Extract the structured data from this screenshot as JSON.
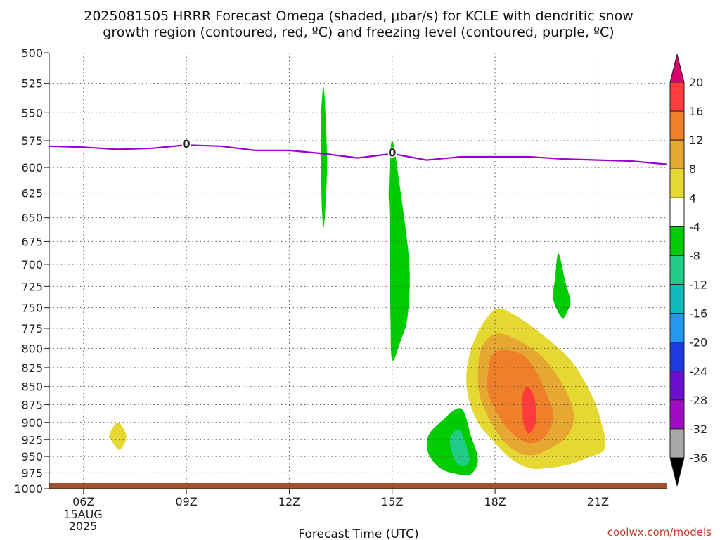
{
  "chart_data": {
    "type": "contour",
    "title_line1": "2025081505 HRRR Forecast Omega (shaded, μbar/s) for KCLE with dendritic snow",
    "title_line2": "growth region (contoured, red, ºC) and freezing level (contoured, purple, ºC)",
    "xlabel": "Forecast Time (UTC)",
    "x_ticks": [
      "06Z",
      "09Z",
      "12Z",
      "15Z",
      "18Z",
      "21Z"
    ],
    "x_tick_hours": [
      6,
      9,
      12,
      15,
      18,
      21
    ],
    "x_date_label": "15AUG",
    "x_year_label": "2025",
    "xlim_hours": [
      5,
      23
    ],
    "y_ticks": [
      "500",
      "525",
      "550",
      "575",
      "600",
      "625",
      "650",
      "675",
      "700",
      "725",
      "750",
      "775",
      "800",
      "825",
      "850",
      "875",
      "900",
      "925",
      "950",
      "975",
      "1000"
    ],
    "ylim_hpa": [
      500,
      1000
    ],
    "y_scale": "log-pressure",
    "credit": "coolwx.com/models",
    "colorbar": {
      "labels": [
        "20",
        "16",
        "12",
        "8",
        "4",
        "-4",
        "-8",
        "-12",
        "-16",
        "-20",
        "-24",
        "-28",
        "-32",
        "-36"
      ],
      "colors": [
        "#d6006e",
        "#ff3b3b",
        "#f07f2a",
        "#e6a833",
        "#e6d832",
        "#ffffff",
        "#00cc00",
        "#22cc88",
        "#11bbbb",
        "#2299ee",
        "#1e3adf",
        "#6a0fcf",
        "#a00cc4",
        "#a8a8a8",
        "#000000"
      ]
    },
    "freezing_level": {
      "label": "0",
      "color": "#9b00d0",
      "hours": [
        5,
        6,
        7,
        8,
        9,
        10,
        11,
        12,
        13,
        14,
        15,
        16,
        17,
        18,
        19,
        20,
        21,
        22,
        23
      ],
      "pressure_hpa": [
        580,
        581,
        583,
        582,
        579,
        580,
        584,
        584,
        587,
        591,
        587,
        593,
        590,
        590,
        590,
        592,
        593,
        594,
        597
      ]
    },
    "terrain_color": "#a0522d",
    "omega_regions": [
      {
        "level": "-8..-4",
        "color": "#00cc00",
        "hours": [
          13.0,
          13.07,
          13.1,
          13.05,
          13.0,
          12.95,
          12.92,
          12.93
        ],
        "pressure_hpa": [
          528,
          560,
          600,
          640,
          660,
          640,
          590,
          550
        ]
      },
      {
        "level": "-8..-4",
        "color": "#00cc00",
        "hours": [
          15.0,
          15.25,
          15.5,
          15.45,
          15.25,
          15.0,
          14.95,
          14.92,
          14.9
        ],
        "pressure_hpa": [
          575,
          625,
          700,
          760,
          790,
          815,
          760,
          650,
          620
        ]
      },
      {
        "level": "-8..-4",
        "color": "#00cc00",
        "hours": [
          19.85,
          20.05,
          20.2,
          20.1,
          19.95,
          19.7,
          19.75
        ],
        "pressure_hpa": [
          688,
          720,
          742,
          755,
          762,
          740,
          715
        ]
      },
      {
        "level": "-8..-4",
        "color": "#00cc00",
        "hours": [
          17.0,
          17.3,
          17.5,
          17.3,
          16.9,
          16.4,
          16.05,
          16.05,
          16.4
        ],
        "pressure_hpa": [
          880,
          920,
          955,
          977,
          977,
          968,
          945,
          920,
          900
        ]
      },
      {
        "level": "-12..-8",
        "color": "#22cc88",
        "hours": [
          16.95,
          17.15,
          17.25,
          17.1,
          16.85,
          16.7,
          16.72
        ],
        "pressure_hpa": [
          910,
          932,
          955,
          965,
          958,
          935,
          920
        ]
      },
      {
        "level": "4..8",
        "color": "#e6d832",
        "hours": [
          7.0,
          7.25,
          7.05,
          6.8,
          6.75
        ],
        "pressure_hpa": [
          900,
          920,
          940,
          925,
          918
        ]
      },
      {
        "level": "4..8",
        "color": "#e6d832",
        "hours": [
          18.0,
          18.5,
          19.3,
          20.2,
          20.8,
          21.1,
          21.2,
          20.7,
          20.1,
          19.5,
          19.0,
          18.5,
          18.0,
          17.5,
          17.2,
          17.2,
          17.5
        ],
        "pressure_hpa": [
          752,
          757,
          780,
          815,
          860,
          900,
          938,
          952,
          963,
          968,
          968,
          955,
          930,
          900,
          860,
          820,
          780
        ]
      },
      {
        "level": "8..12",
        "color": "#e6a833",
        "hours": [
          18.0,
          18.6,
          19.4,
          20.0,
          20.3,
          20.1,
          19.6,
          19.1,
          18.6,
          18.1,
          17.6,
          17.5,
          17.6
        ],
        "pressure_hpa": [
          782,
          788,
          812,
          850,
          890,
          920,
          938,
          948,
          942,
          918,
          870,
          835,
          800
        ]
      },
      {
        "level": "12..16",
        "color": "#f07f2a",
        "hours": [
          18.2,
          18.8,
          19.2,
          19.5,
          19.7,
          19.5,
          19.1,
          18.7,
          18.2,
          17.8,
          17.8,
          17.9
        ],
        "pressure_hpa": [
          802,
          808,
          830,
          860,
          890,
          918,
          930,
          924,
          898,
          860,
          830,
          810
        ]
      },
      {
        "level": "16..20",
        "color": "#ff3b3b",
        "hours": [
          18.95,
          19.12,
          19.2,
          19.18,
          18.98,
          18.83,
          18.8,
          18.8
        ],
        "pressure_hpa": [
          850,
          862,
          882,
          902,
          916,
          902,
          882,
          862
        ]
      }
    ]
  }
}
